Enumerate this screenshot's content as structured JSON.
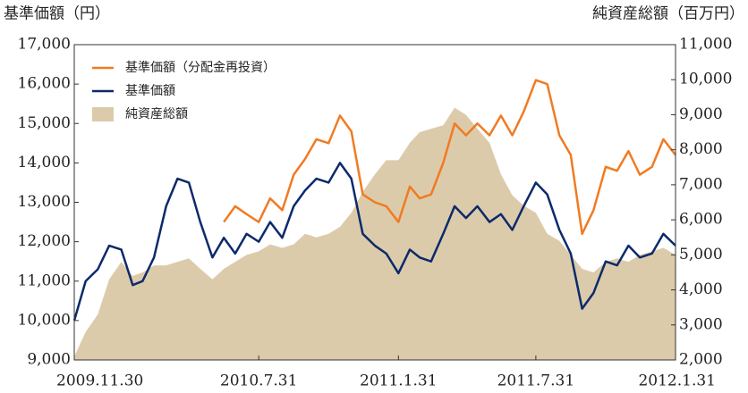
{
  "chart_data": {
    "type": "line",
    "y_label": "基準価額（円）",
    "y2_label": "純資産総額（百万円）",
    "x": [
      "2009-11-30",
      "2009-12-15",
      "2009-12-31",
      "2010-01-15",
      "2010-01-31",
      "2010-02-15",
      "2010-02-28",
      "2010-03-15",
      "2010-03-31",
      "2010-04-15",
      "2010-04-30",
      "2010-05-15",
      "2010-05-31",
      "2010-06-15",
      "2010-06-30",
      "2010-07-15",
      "2010-07-31",
      "2010-08-15",
      "2010-08-31",
      "2010-09-15",
      "2010-09-30",
      "2010-10-15",
      "2010-10-31",
      "2010-11-15",
      "2010-11-30",
      "2010-12-15",
      "2010-12-31",
      "2011-01-15",
      "2011-01-31",
      "2011-02-15",
      "2011-02-28",
      "2011-03-15",
      "2011-03-31",
      "2011-04-15",
      "2011-04-30",
      "2011-05-15",
      "2011-05-31",
      "2011-06-15",
      "2011-06-30",
      "2011-07-15",
      "2011-07-31",
      "2011-08-15",
      "2011-08-31",
      "2011-09-15",
      "2011-09-30",
      "2011-10-15",
      "2011-10-31",
      "2011-11-15",
      "2011-11-30",
      "2011-12-15",
      "2011-12-31",
      "2012-01-15",
      "2012-01-31"
    ],
    "series": [
      {
        "name": "純資産総額",
        "kind": "area",
        "axis": "y2",
        "color": "#dccbab",
        "values": [
          2100,
          2800,
          3300,
          4300,
          4800,
          4400,
          4500,
          4700,
          4700,
          4800,
          4900,
          4600,
          4300,
          4600,
          4800,
          5000,
          5100,
          5300,
          5200,
          5300,
          5600,
          5500,
          5600,
          5800,
          6200,
          6800,
          7300,
          7700,
          7700,
          8200,
          8500,
          8600,
          8700,
          9200,
          9000,
          8600,
          8200,
          7300,
          6700,
          6400,
          6200,
          5600,
          5400,
          5000,
          4600,
          4500,
          4800,
          4900,
          4800,
          5000,
          5100,
          5200,
          5000
        ]
      },
      {
        "name": "基準価額（分配金再投資）",
        "kind": "line",
        "color": "#f07b22",
        "values": [
          null,
          null,
          null,
          null,
          null,
          null,
          null,
          null,
          null,
          null,
          null,
          null,
          null,
          12500,
          12900,
          12700,
          12500,
          13100,
          12800,
          13700,
          14100,
          14600,
          14500,
          15200,
          14800,
          13200,
          13000,
          12900,
          12500,
          13400,
          13100,
          13200,
          14000,
          15000,
          14700,
          15000,
          14700,
          15200,
          14700,
          15300,
          16100,
          16000,
          14700,
          14200,
          12200,
          12800,
          13900,
          13800,
          14300,
          13700,
          13900,
          14600,
          14200
        ]
      },
      {
        "name": "基準価額",
        "kind": "line",
        "color": "#0c2a6b",
        "values": [
          10000,
          11000,
          11300,
          11900,
          11800,
          10900,
          11000,
          11600,
          12900,
          13600,
          13500,
          12500,
          11600,
          12100,
          11700,
          12200,
          12000,
          12500,
          12100,
          12900,
          13300,
          13600,
          13500,
          14000,
          13600,
          12200,
          11900,
          11700,
          11200,
          11800,
          11600,
          11500,
          12200,
          12900,
          12600,
          12900,
          12500,
          12700,
          12300,
          12900,
          13500,
          13200,
          12300,
          11700,
          10300,
          10700,
          11500,
          11400,
          11900,
          11600,
          11700,
          12200,
          11900
        ]
      }
    ],
    "ylim": [
      9000,
      17000
    ],
    "yticks": [
      {
        "value": 9000,
        "label": "9,000"
      },
      {
        "value": 10000,
        "label": "10,000"
      },
      {
        "value": 11000,
        "label": "11,000"
      },
      {
        "value": 12000,
        "label": "12,000"
      },
      {
        "value": 13000,
        "label": "13,000"
      },
      {
        "value": 14000,
        "label": "14,000"
      },
      {
        "value": 15000,
        "label": "15,000"
      },
      {
        "value": 16000,
        "label": "16,000"
      },
      {
        "value": 17000,
        "label": "17,000"
      }
    ],
    "y2lim": [
      2000,
      11000
    ],
    "y2ticks": [
      {
        "value": 2000,
        "label": "2,000"
      },
      {
        "value": 3000,
        "label": "3,000"
      },
      {
        "value": 4000,
        "label": "4,000"
      },
      {
        "value": 5000,
        "label": "5,000"
      },
      {
        "value": 6000,
        "label": "6,000"
      },
      {
        "value": 7000,
        "label": "7,000"
      },
      {
        "value": 8000,
        "label": "8,000"
      },
      {
        "value": 9000,
        "label": "9,000"
      },
      {
        "value": 10000,
        "label": "10,000"
      },
      {
        "value": 11000,
        "label": "11,000"
      }
    ],
    "xticks": [
      {
        "value": "2009-11-30",
        "label": "2009.11.30"
      },
      {
        "value": "2010-07-31",
        "label": "2010.7.31"
      },
      {
        "value": "2011-01-31",
        "label": "2011.1.31"
      },
      {
        "value": "2011-07-31",
        "label": "2011.7.31"
      },
      {
        "value": "2012-01-31",
        "label": "2012.1.31"
      }
    ],
    "legend": "upper left"
  }
}
